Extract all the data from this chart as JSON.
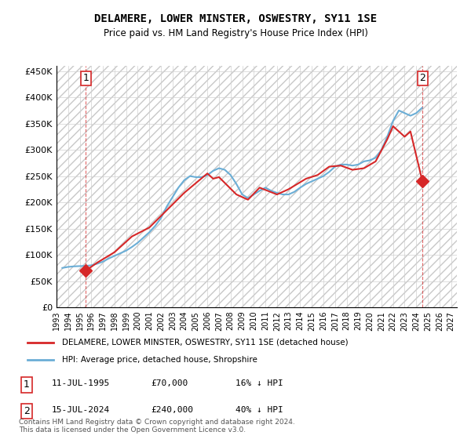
{
  "title": "DELAMERE, LOWER MINSTER, OSWESTRY, SY11 1SE",
  "subtitle": "Price paid vs. HM Land Registry's House Price Index (HPI)",
  "ylabel": "",
  "ylim": [
    0,
    460000
  ],
  "yticks": [
    0,
    50000,
    100000,
    150000,
    200000,
    250000,
    300000,
    350000,
    400000,
    450000
  ],
  "ytick_labels": [
    "£0",
    "£50K",
    "£100K",
    "£150K",
    "£200K",
    "£250K",
    "£300K",
    "£350K",
    "£400K",
    "£450K"
  ],
  "hpi_color": "#6baed6",
  "price_color": "#d62728",
  "hatch_color": "#d0d0d0",
  "grid_color": "#d0d0d0",
  "point1_x": 1995.53,
  "point1_y": 70000,
  "point2_x": 2024.53,
  "point2_y": 240000,
  "point1_label": "1",
  "point2_label": "2",
  "legend_red_label": "DELAMERE, LOWER MINSTER, OSWESTRY, SY11 1SE (detached house)",
  "legend_blue_label": "HPI: Average price, detached house, Shropshire",
  "note1": "1    11-JUL-1995           £70,000        16% ↓ HPI",
  "note2": "2    15-JUL-2024           £240,000      40% ↓ HPI",
  "footnote": "Contains HM Land Registry data © Crown copyright and database right 2024.\nThis data is licensed under the Open Government Licence v3.0.",
  "hpi_data": {
    "years": [
      1993.5,
      1994.0,
      1994.5,
      1995.0,
      1995.5,
      1996.0,
      1996.5,
      1997.0,
      1997.5,
      1998.0,
      1998.5,
      1999.0,
      1999.5,
      2000.0,
      2000.5,
      2001.0,
      2001.5,
      2002.0,
      2002.5,
      2003.0,
      2003.5,
      2004.0,
      2004.5,
      2005.0,
      2005.5,
      2006.0,
      2006.5,
      2007.0,
      2007.5,
      2008.0,
      2008.5,
      2009.0,
      2009.5,
      2010.0,
      2010.5,
      2011.0,
      2011.5,
      2012.0,
      2012.5,
      2013.0,
      2013.5,
      2014.0,
      2014.5,
      2015.0,
      2015.5,
      2016.0,
      2016.5,
      2017.0,
      2017.5,
      2018.0,
      2018.5,
      2019.0,
      2019.5,
      2020.0,
      2020.5,
      2021.0,
      2021.5,
      2022.0,
      2022.5,
      2023.0,
      2023.5,
      2024.0,
      2024.5
    ],
    "values": [
      75000,
      77000,
      78000,
      78500,
      79000,
      80000,
      83000,
      87000,
      93000,
      98000,
      103000,
      108000,
      115000,
      123000,
      133000,
      143000,
      155000,
      170000,
      192000,
      210000,
      228000,
      242000,
      250000,
      248000,
      248000,
      252000,
      260000,
      265000,
      262000,
      252000,
      235000,
      215000,
      208000,
      215000,
      222000,
      228000,
      222000,
      218000,
      215000,
      215000,
      220000,
      228000,
      235000,
      240000,
      245000,
      250000,
      258000,
      268000,
      272000,
      272000,
      270000,
      272000,
      278000,
      280000,
      285000,
      300000,
      325000,
      355000,
      375000,
      370000,
      365000,
      370000,
      380000
    ]
  },
  "price_data": {
    "years": [
      1995.53,
      1996.5,
      1998.0,
      1999.5,
      2001.0,
      2002.5,
      2004.0,
      2006.0,
      2006.5,
      2007.0,
      2008.5,
      2009.5,
      2010.5,
      2012.0,
      2013.0,
      2014.5,
      2015.5,
      2016.5,
      2017.5,
      2018.5,
      2019.5,
      2020.5,
      2021.5,
      2022.0,
      2023.0,
      2023.5,
      2024.53
    ],
    "values": [
      70000,
      85000,
      105000,
      135000,
      152000,
      185000,
      218000,
      255000,
      245000,
      248000,
      215000,
      205000,
      228000,
      215000,
      225000,
      245000,
      252000,
      268000,
      270000,
      262000,
      265000,
      278000,
      320000,
      345000,
      325000,
      335000,
      240000
    ]
  },
  "xlim": [
    1993.0,
    2027.5
  ],
  "xticks": [
    1993,
    1994,
    1995,
    1996,
    1997,
    1998,
    1999,
    2000,
    2001,
    2002,
    2003,
    2004,
    2005,
    2006,
    2007,
    2008,
    2009,
    2010,
    2011,
    2012,
    2013,
    2014,
    2015,
    2016,
    2017,
    2018,
    2019,
    2020,
    2021,
    2022,
    2023,
    2024,
    2025,
    2026,
    2027
  ]
}
